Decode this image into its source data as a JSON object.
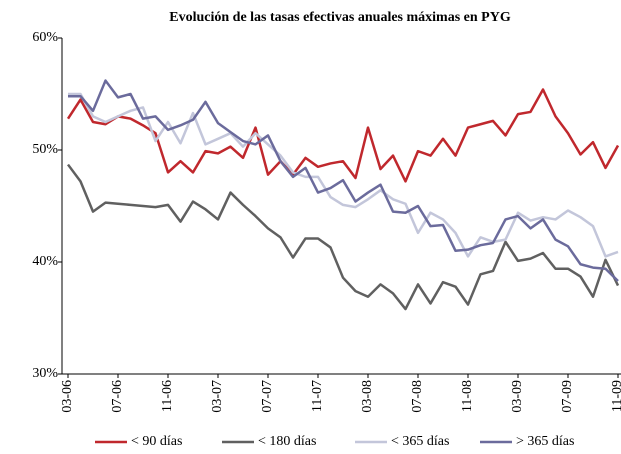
{
  "chart_data": {
    "type": "line",
    "title": "Evolución de las tasas efectivas anuales máximas en PYG",
    "categories": [
      "03-06",
      null,
      null,
      null,
      "07-06",
      null,
      null,
      null,
      "11-06",
      null,
      null,
      null,
      "03-07",
      null,
      null,
      null,
      "07-07",
      null,
      null,
      null,
      "11-07",
      null,
      null,
      null,
      "03-08",
      null,
      null,
      null,
      "07-08",
      null,
      null,
      null,
      "11-08",
      null,
      null,
      null,
      "03-09",
      null,
      null,
      null,
      "07-09",
      null,
      null,
      null,
      "11-09"
    ],
    "series": [
      {
        "name": "< 90 días",
        "color": "#c0282d",
        "values": [
          52.8,
          54.5,
          52.5,
          52.3,
          53.0,
          52.8,
          52.2,
          51.5,
          48.0,
          49.0,
          48.0,
          49.9,
          49.7,
          50.3,
          49.3,
          52.0,
          47.8,
          49.0,
          47.8,
          49.3,
          48.5,
          48.8,
          49.0,
          47.5,
          52.0,
          48.3,
          49.5,
          47.2,
          49.9,
          49.5,
          51.0,
          49.5,
          52.0,
          52.3,
          52.6,
          51.3,
          53.2,
          53.4,
          55.4,
          53.0,
          51.5,
          49.6,
          50.7,
          48.4,
          50.4
        ]
      },
      {
        "name": "< 180 días",
        "color": "#606060",
        "values": [
          48.7,
          47.2,
          44.5,
          45.3,
          45.2,
          45.1,
          45.0,
          44.9,
          45.1,
          43.6,
          45.4,
          44.7,
          43.8,
          46.2,
          45.1,
          44.1,
          43.0,
          42.2,
          40.4,
          42.1,
          42.1,
          41.3,
          38.6,
          37.4,
          36.9,
          38.0,
          37.2,
          35.8,
          38.0,
          36.3,
          38.2,
          37.8,
          36.2,
          38.9,
          39.2,
          41.8,
          40.1,
          40.3,
          40.8,
          39.4,
          39.4,
          38.7,
          36.9,
          40.2,
          37.9
        ]
      },
      {
        "name": "< 365 días",
        "color": "#c3c6da",
        "values": [
          55.0,
          55.0,
          53.0,
          52.5,
          53.0,
          53.5,
          53.8,
          50.8,
          52.5,
          50.6,
          53.3,
          50.5,
          51.0,
          51.5,
          50.3,
          51.5,
          50.5,
          49.5,
          48.0,
          47.6,
          47.6,
          45.8,
          45.1,
          44.9,
          45.6,
          46.4,
          45.6,
          45.2,
          42.6,
          44.4,
          43.8,
          42.6,
          40.5,
          42.2,
          41.8,
          42.0,
          44.4,
          43.7,
          44.0,
          43.8,
          44.6,
          44.0,
          43.2,
          40.5,
          40.9
        ]
      },
      {
        "name": "> 365 días",
        "color": "#6b6b9c",
        "values": [
          54.8,
          54.8,
          53.5,
          56.2,
          54.7,
          55.0,
          52.8,
          53.0,
          51.8,
          52.2,
          52.7,
          54.3,
          52.4,
          51.6,
          50.8,
          50.5,
          51.3,
          49.0,
          47.6,
          48.4,
          46.2,
          46.6,
          47.3,
          45.4,
          46.2,
          46.9,
          44.5,
          44.4,
          45.0,
          43.2,
          43.3,
          41.0,
          41.1,
          41.5,
          41.7,
          43.8,
          44.1,
          43.0,
          43.8,
          42.0,
          41.4,
          39.8,
          39.5,
          39.4,
          38.3
        ]
      }
    ],
    "ylim": [
      30,
      60
    ],
    "yticks": [
      {
        "value": 30,
        "label": "30%"
      },
      {
        "value": 40,
        "label": "40%"
      },
      {
        "value": 50,
        "label": "50%"
      },
      {
        "value": 60,
        "label": "60%"
      }
    ],
    "grid": false,
    "legend": "bottom"
  }
}
